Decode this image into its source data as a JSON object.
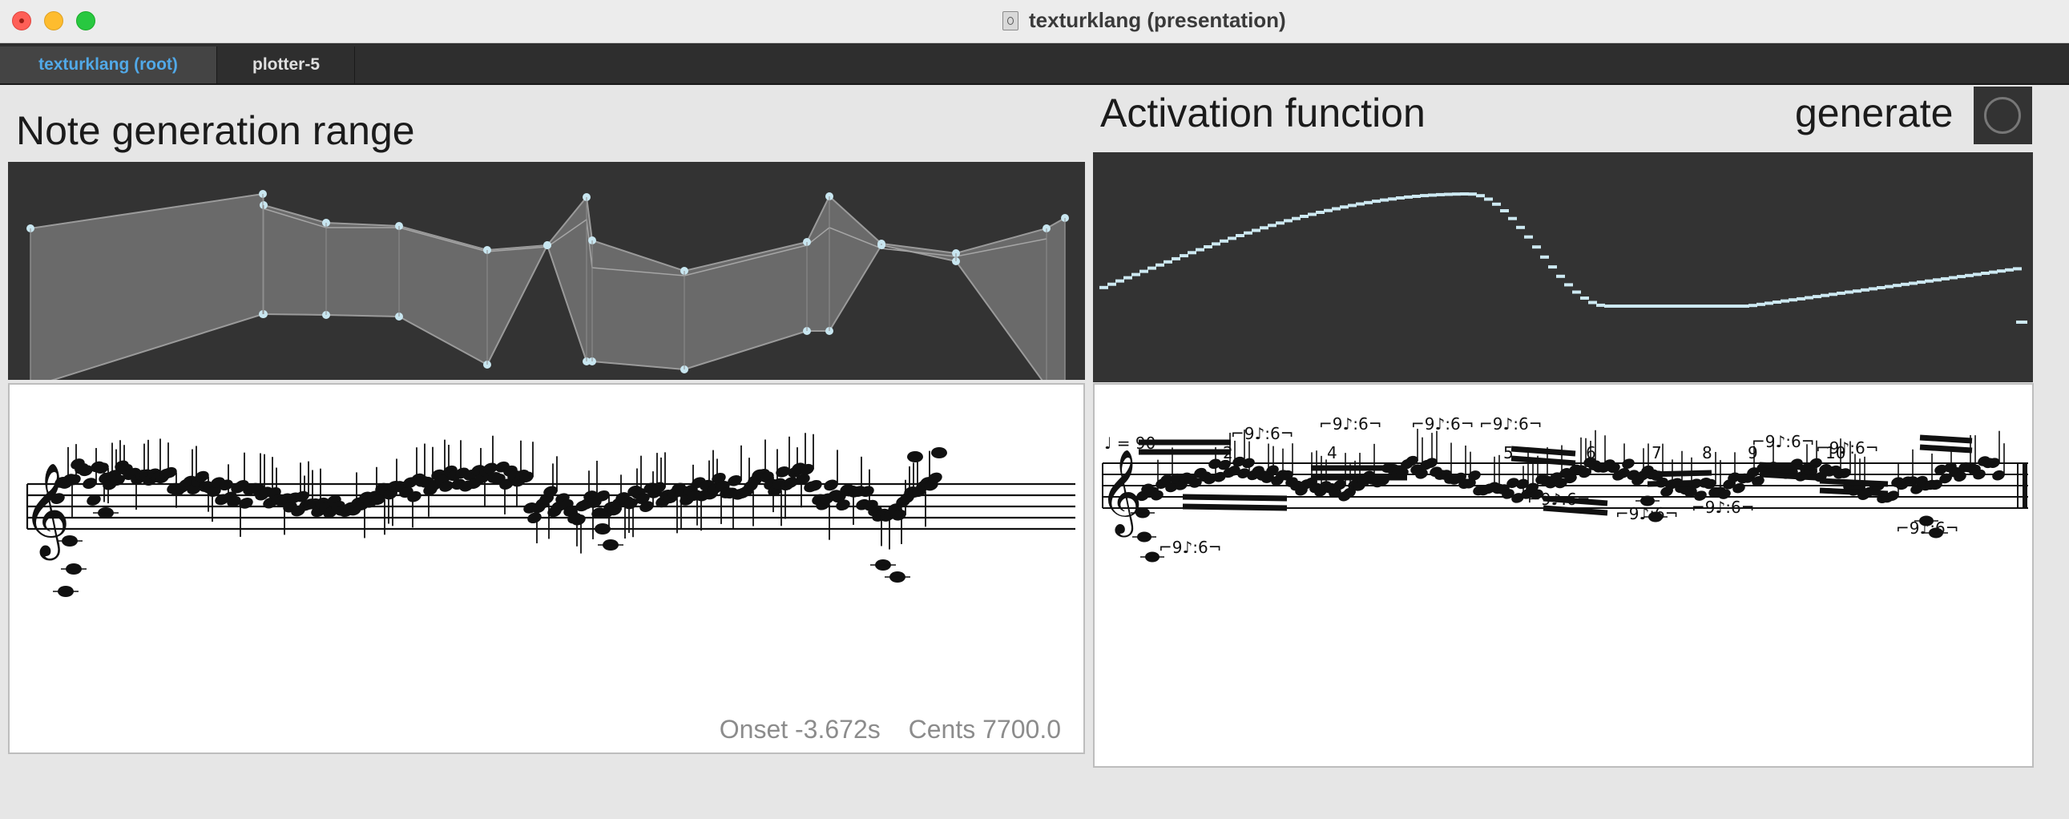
{
  "window": {
    "title": "texturklang (presentation)"
  },
  "tabs": [
    {
      "label": "texturklang (root)",
      "active": true
    },
    {
      "label": "plotter-5",
      "active": false
    }
  ],
  "headings": {
    "note_range": "Note generation range",
    "activation": "Activation function",
    "generate": "generate"
  },
  "colors": {
    "accent_tab": "#51a9e8",
    "panel_bg": "#333333",
    "envelope_fill": "#6a6a6a",
    "breakpoint": "#c8e6f0",
    "step_line": "#cde9f2"
  },
  "readout": {
    "onset": "Onset -3.672s",
    "cents": "Cents 7700.0"
  },
  "score": {
    "tempo": "♩ = 90",
    "measure_numbers": [
      "2",
      "4",
      "5",
      "6",
      "7",
      "8",
      "9",
      "10"
    ],
    "tuplet_label": "9♪:6"
  }
}
